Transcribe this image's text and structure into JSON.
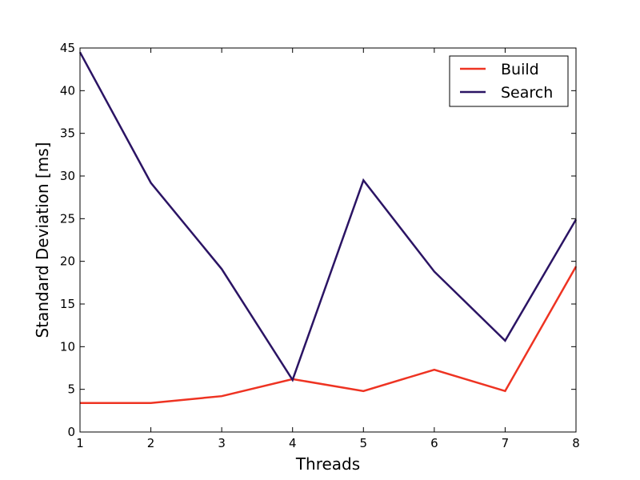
{
  "chart_data": {
    "type": "line",
    "title": "",
    "xlabel": "Threads",
    "ylabel": "Standard Deviation [ms]",
    "x": [
      1,
      2,
      3,
      4,
      5,
      6,
      7,
      8
    ],
    "xlim": [
      1,
      8
    ],
    "ylim": [
      0,
      45
    ],
    "xticks": [
      "1",
      "2",
      "3",
      "4",
      "5",
      "6",
      "7",
      "8"
    ],
    "yticks": [
      "0",
      "5",
      "10",
      "15",
      "20",
      "25",
      "30",
      "35",
      "40",
      "45"
    ],
    "grid": false,
    "legend_position": "top-right",
    "series": [
      {
        "name": "Build",
        "color": "#ee3322",
        "values": [
          3.4,
          3.4,
          4.2,
          6.2,
          4.8,
          7.3,
          4.8,
          19.4
        ]
      },
      {
        "name": "Search",
        "color": "#2b1464",
        "values": [
          44.5,
          29.2,
          19.1,
          6.1,
          29.5,
          18.8,
          10.7,
          24.9
        ]
      }
    ]
  }
}
